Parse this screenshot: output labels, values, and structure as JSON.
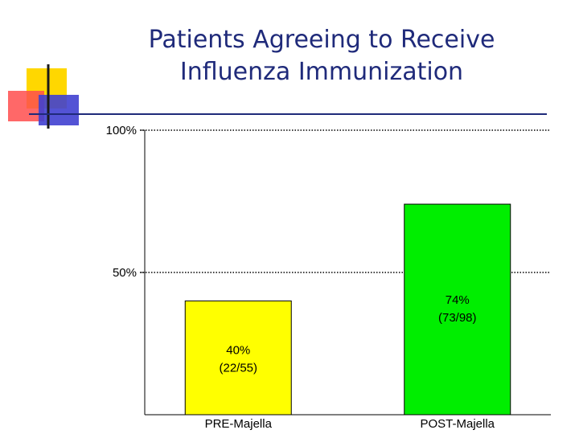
{
  "title": {
    "line1": "Patients Agreeing to Receive",
    "line2": "Influenza Immunization"
  },
  "colors": {
    "title": "#1f2a7a",
    "accent_yellow": "#ffd700",
    "accent_red": "#ff4d4d",
    "accent_blue": "#4040d0"
  },
  "chart_data": {
    "type": "bar",
    "title": "Patients Agreeing to Receive Influenza Immunization",
    "categories": [
      "PRE-Majella",
      "POST-Majella"
    ],
    "values": [
      40,
      74
    ],
    "data_labels": [
      [
        "40%",
        "(22/55)"
      ],
      [
        "74%",
        "(73/98)"
      ]
    ],
    "bar_colors": [
      "#ffff00",
      "#00ee00"
    ],
    "yticks": [
      {
        "value": 50,
        "label": "50%"
      },
      {
        "value": 100,
        "label": "100%"
      }
    ],
    "ylim": [
      0,
      100
    ],
    "gridlines": "dotted at 50% and 100%",
    "legend": "none"
  }
}
